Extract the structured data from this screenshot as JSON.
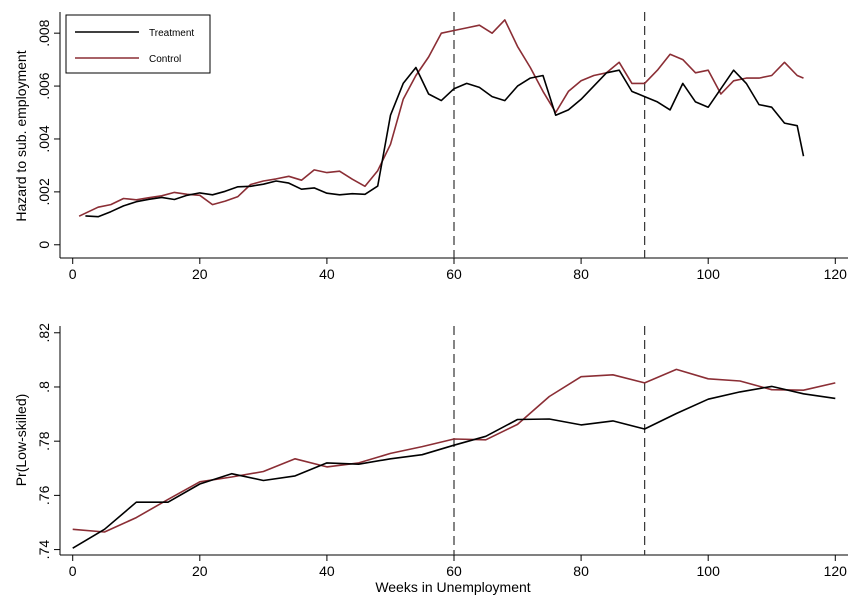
{
  "colors": {
    "treatment": "#000000",
    "control": "#8b2e35",
    "reference": "#333333"
  },
  "chart_data": [
    {
      "type": "line",
      "title": "",
      "xlabel": "",
      "ylabel": "Hazard to sub. employment",
      "xlim": [
        -2,
        122
      ],
      "ylim": [
        -0.0005,
        0.0088
      ],
      "xticks": [
        0,
        20,
        40,
        60,
        80,
        100,
        120
      ],
      "xtick_labels": [
        "0",
        "20",
        "40",
        "60",
        "80",
        "100",
        "120"
      ],
      "yticks": [
        0,
        0.002,
        0.004,
        0.006,
        0.008
      ],
      "ytick_labels": [
        "0",
        ".002",
        ".004",
        ".006",
        ".008"
      ],
      "vlines": [
        60,
        90
      ],
      "grid": false,
      "legend": {
        "placement": "top-left",
        "entries": [
          "Treatment",
          "Control"
        ]
      },
      "series": [
        {
          "name": "Treatment",
          "x": [
            2,
            4,
            6,
            8,
            10,
            12,
            14,
            16,
            18,
            20,
            22,
            24,
            26,
            28,
            30,
            32,
            34,
            36,
            38,
            40,
            42,
            44,
            46,
            48,
            50,
            52,
            54,
            56,
            58,
            60,
            62,
            64,
            66,
            68,
            70,
            72,
            74,
            76,
            78,
            80,
            82,
            84,
            86,
            88,
            90,
            92,
            94,
            96,
            98,
            100,
            102,
            104,
            106,
            108,
            110,
            112,
            114,
            115
          ],
          "values": [
            0.00109,
            0.00106,
            0.00125,
            0.00147,
            0.00163,
            0.00172,
            0.00179,
            0.00171,
            0.00187,
            0.00196,
            0.00189,
            0.00202,
            0.00219,
            0.00221,
            0.00229,
            0.00241,
            0.00233,
            0.0021,
            0.00215,
            0.00195,
            0.00189,
            0.00193,
            0.00191,
            0.00222,
            0.0049,
            0.0061,
            0.0067,
            0.0057,
            0.00545,
            0.0059,
            0.0061,
            0.00595,
            0.0056,
            0.00545,
            0.006,
            0.0063,
            0.0064,
            0.0049,
            0.0051,
            0.0055,
            0.006,
            0.0065,
            0.0066,
            0.0058,
            0.0056,
            0.0054,
            0.0051,
            0.0061,
            0.0054,
            0.0052,
            0.0059,
            0.0066,
            0.0061,
            0.0053,
            0.0052,
            0.0046,
            0.0045,
            0.00335
          ]
        },
        {
          "name": "Control",
          "x": [
            1,
            4,
            6,
            8,
            10,
            12,
            14,
            16,
            18,
            20,
            22,
            24,
            26,
            28,
            30,
            32,
            34,
            36,
            38,
            40,
            42,
            44,
            46,
            48,
            50,
            52,
            54,
            56,
            58,
            60,
            62,
            64,
            66,
            68,
            70,
            72,
            74,
            76,
            78,
            80,
            82,
            84,
            86,
            88,
            90,
            92,
            94,
            96,
            98,
            100,
            102,
            104,
            106,
            108,
            110,
            112,
            114,
            115
          ],
          "values": [
            0.00108,
            0.00142,
            0.00152,
            0.00175,
            0.0017,
            0.00178,
            0.00185,
            0.00198,
            0.00191,
            0.00187,
            0.00152,
            0.00165,
            0.00182,
            0.00228,
            0.00241,
            0.00249,
            0.00259,
            0.00244,
            0.00283,
            0.00273,
            0.00278,
            0.00248,
            0.00221,
            0.0028,
            0.0038,
            0.0055,
            0.0064,
            0.0071,
            0.008,
            0.0081,
            0.0082,
            0.0083,
            0.008,
            0.0085,
            0.0075,
            0.0067,
            0.0058,
            0.005,
            0.0058,
            0.0062,
            0.0064,
            0.0065,
            0.0069,
            0.0061,
            0.0061,
            0.0066,
            0.0072,
            0.007,
            0.0065,
            0.0066,
            0.0057,
            0.0062,
            0.0063,
            0.0063,
            0.0064,
            0.0069,
            0.0064,
            0.0063
          ]
        }
      ]
    },
    {
      "type": "line",
      "title": "",
      "xlabel": "Weeks in Unemployment",
      "ylabel": "Pr(Low-skilled)",
      "xlim": [
        -2,
        122
      ],
      "ylim": [
        0.738,
        0.8225
      ],
      "xticks": [
        0,
        20,
        40,
        60,
        80,
        100,
        120
      ],
      "xtick_labels": [
        "0",
        "20",
        "40",
        "60",
        "80",
        "100",
        "120"
      ],
      "yticks": [
        0.74,
        0.76,
        0.78,
        0.8,
        0.82
      ],
      "ytick_labels": [
        ".74",
        ".76",
        ".78",
        ".8",
        ".82"
      ],
      "vlines": [
        60,
        90
      ],
      "grid": false,
      "series": [
        {
          "name": "Treatment",
          "x": [
            0,
            5,
            10,
            15,
            20,
            25,
            30,
            35,
            40,
            45,
            50,
            55,
            60,
            65,
            70,
            75,
            80,
            85,
            90,
            95,
            100,
            105,
            110,
            115,
            120
          ],
          "values": [
            0.7405,
            0.7475,
            0.7575,
            0.7575,
            0.7642,
            0.768,
            0.7655,
            0.7672,
            0.772,
            0.7715,
            0.7735,
            0.775,
            0.7785,
            0.7818,
            0.788,
            0.7882,
            0.786,
            0.7875,
            0.7845,
            0.7902,
            0.7955,
            0.7982,
            0.8002,
            0.7975,
            0.7958
          ]
        },
        {
          "name": "Control",
          "x": [
            0,
            5,
            10,
            15,
            20,
            25,
            30,
            35,
            40,
            45,
            50,
            55,
            60,
            65,
            70,
            75,
            80,
            85,
            90,
            95,
            100,
            105,
            110,
            115,
            120
          ],
          "values": [
            0.7475,
            0.7465,
            0.7518,
            0.7585,
            0.765,
            0.7668,
            0.7688,
            0.7735,
            0.7705,
            0.772,
            0.7755,
            0.778,
            0.7808,
            0.7805,
            0.7862,
            0.7965,
            0.8038,
            0.8045,
            0.8015,
            0.8065,
            0.803,
            0.8022,
            0.799,
            0.7988,
            0.8015
          ]
        }
      ]
    }
  ]
}
